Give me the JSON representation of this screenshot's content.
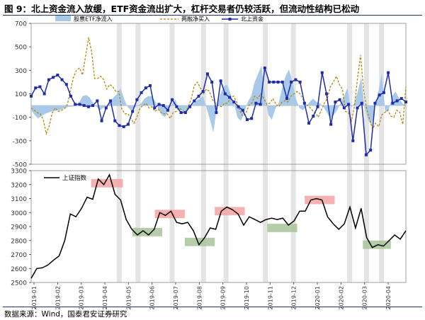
{
  "title": "图 9：北上资金流入放缓，ETF资金流出扩大，杠杆交易者仍较活跃，但流动性结构已松动",
  "source": "数据来源：Wind，国泰君安证券研究",
  "colors": {
    "etf_fill": "#a9c9e8",
    "margin": "#b8860b",
    "northbound": "#1f2ca8",
    "index": "#000000",
    "shade": "#e4e4e4",
    "red_box": "#f4a3a3",
    "green_box": "#a9c49a"
  },
  "chart_data": [
    {
      "type": "line",
      "panel": "top",
      "ylim": [
        -500,
        700
      ],
      "yticks": [
        "700",
        "500",
        "300",
        "100",
        "-100",
        "-300",
        "-500"
      ],
      "legend": [
        "股票ETF净流入",
        "两融净买入",
        "北上资金"
      ],
      "series": [
        {
          "name": "股票ETF净流入",
          "kind": "area",
          "values": [
            -40,
            -80,
            -110,
            -90,
            -70,
            -60,
            -50,
            -45,
            -40,
            -30,
            -20,
            -10,
            -10,
            0,
            30,
            80,
            90,
            70,
            20,
            -10,
            -40,
            -20,
            0,
            40,
            70,
            100,
            150,
            60,
            -10,
            -40,
            -20,
            0,
            20,
            60,
            80,
            80,
            40,
            -30,
            -80,
            -100,
            -30,
            10,
            50,
            -40,
            -40,
            -60,
            0,
            10,
            40,
            60,
            80,
            -20,
            -120,
            -230,
            -20,
            100,
            160,
            180,
            100,
            20,
            -100,
            -130,
            -60,
            30,
            80,
            200,
            270,
            340,
            80,
            -80,
            -120,
            -30,
            20,
            150,
            250,
            310,
            200,
            60,
            -20,
            -40,
            -10,
            30,
            60,
            30,
            20,
            -10,
            -60,
            -110,
            -80,
            -40,
            20,
            80,
            150,
            -20,
            20,
            120,
            240,
            -20,
            -120,
            -170,
            -20,
            120,
            280,
            -60,
            -40,
            80,
            120,
            60,
            20,
            -20
          ]
        },
        {
          "name": "两融净买入",
          "kind": "line",
          "values": [
            -20,
            -40,
            -60,
            -70,
            -120,
            -240,
            -170,
            -60,
            -20,
            -50,
            -40,
            -30,
            10,
            130,
            240,
            300,
            320,
            260,
            420,
            580,
            460,
            230,
            230,
            250,
            220,
            140,
            180,
            160,
            120,
            120,
            -30,
            -70,
            -70,
            -110,
            -150,
            -100,
            -20,
            0,
            20,
            -20,
            -10,
            -50,
            -30,
            -60,
            -70,
            -70,
            -110,
            -60,
            -50,
            -20,
            -40,
            -60,
            -10,
            60,
            170,
            200,
            150,
            100,
            140,
            120,
            50,
            20,
            0,
            -10,
            20,
            20,
            70,
            80,
            30,
            -40,
            -90,
            -70,
            0,
            20,
            80,
            60,
            100,
            60,
            10,
            20,
            60,
            10,
            -10,
            30,
            40,
            30,
            80,
            100,
            120,
            100,
            50,
            10,
            -10,
            -40,
            -60,
            -100,
            -40,
            20,
            60,
            160,
            200,
            250,
            180,
            140,
            -50,
            -60,
            -130,
            0,
            230,
            430,
            130,
            -20,
            -120,
            -200,
            -150,
            -180,
            -80,
            -60,
            -40,
            -90,
            -100,
            -40,
            -60,
            -160,
            160
          ]
        },
        {
          "name": "北上资金",
          "kind": "line",
          "values": [
            80,
            150,
            160,
            100,
            220,
            240,
            260,
            220,
            180,
            80,
            10,
            10,
            0,
            -10,
            0,
            40,
            -130,
            -20,
            40,
            -130,
            -170,
            -180,
            -160,
            -50,
            50,
            110,
            150,
            170,
            -20,
            10,
            0,
            -40,
            50,
            -10,
            -60,
            -60,
            -10,
            40,
            80,
            120,
            270,
            200,
            -60,
            210,
            100,
            70,
            30,
            -10,
            -40,
            -120,
            -110,
            20,
            10,
            320,
            200,
            200,
            200,
            200,
            60,
            200,
            220,
            200,
            20,
            -150,
            -90,
            -10,
            280,
            100,
            -160,
            30,
            50,
            -20,
            10,
            -300,
            -20,
            20,
            -420,
            -380,
            20,
            90,
            110,
            280,
            20,
            40,
            60,
            30
          ]
        }
      ]
    },
    {
      "type": "line",
      "panel": "bottom",
      "ylim": [
        2500,
        3300
      ],
      "yticks": [
        "3300",
        "3200",
        "3100",
        "3000",
        "2900",
        "2800",
        "2700",
        "2600",
        "2500"
      ],
      "legend": [
        "上证指数"
      ],
      "x_tick_labels": [
        "2019-01",
        "2019-02",
        "2019-03",
        "2019-04",
        "2019-05",
        "2019-06",
        "2019-07",
        "2019-08",
        "2019-09",
        "2019-10",
        "2019-11",
        "2019-12",
        "2020-01",
        "2020-02",
        "2020-03",
        "2020-04"
      ],
      "series": [
        {
          "name": "上证指数",
          "values": [
            2530,
            2600,
            2605,
            2625,
            2660,
            2690,
            2800,
            2990,
            2970,
            3030,
            3110,
            3095,
            3240,
            3200,
            3270,
            3130,
            3090,
            2950,
            2880,
            2840,
            2870,
            2840,
            2880,
            3000,
            2980,
            3010,
            2930,
            2920,
            2930,
            2870,
            2770,
            2820,
            2890,
            2880,
            3010,
            3040,
            3020,
            2990,
            2910,
            2970,
            2950,
            2930,
            2950,
            2960,
            2950,
            2960,
            2910,
            2940,
            3010,
            3010,
            3090,
            3100,
            3090,
            2970,
            2920,
            2880,
            2920,
            3040,
            2890,
            3030,
            2820,
            2750,
            2770,
            2760,
            2800,
            2840,
            2810,
            2870
          ]
        }
      ]
    }
  ]
}
